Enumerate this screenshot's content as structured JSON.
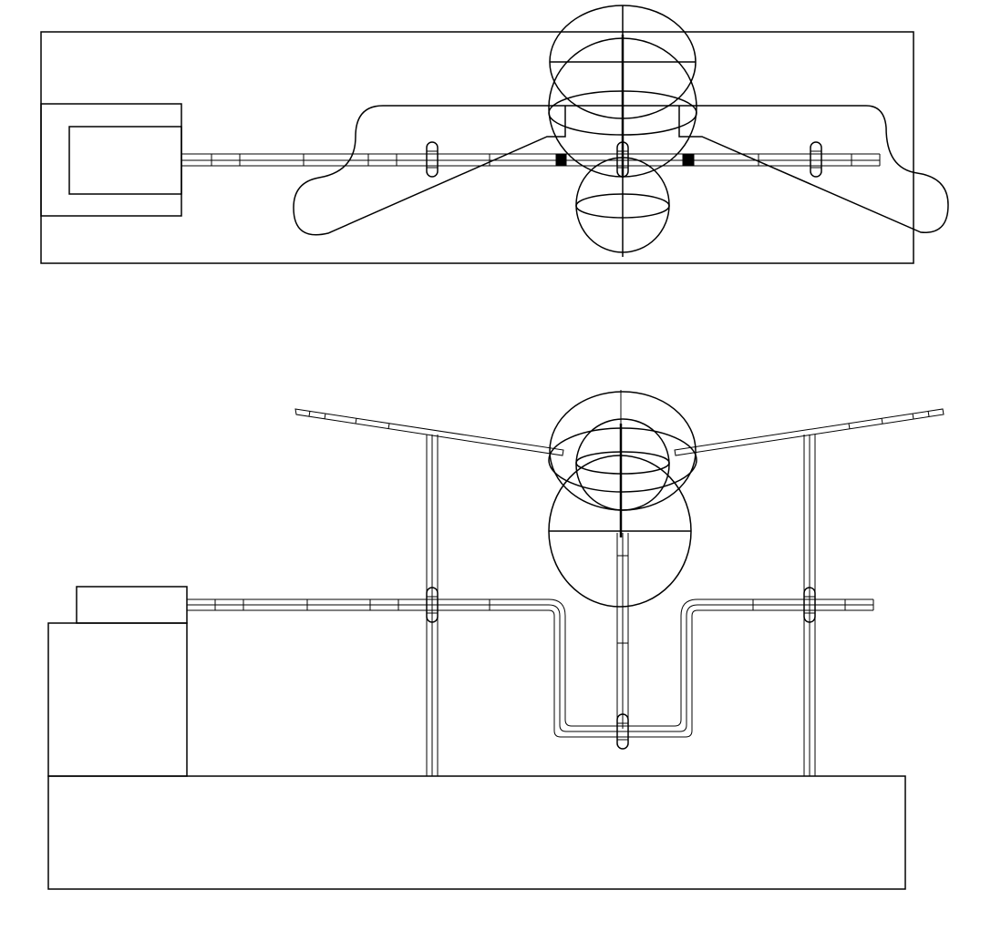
{
  "drawing": {
    "views": [
      "top-view",
      "front-view"
    ],
    "line_color": "#000000",
    "background": "#ffffff"
  }
}
